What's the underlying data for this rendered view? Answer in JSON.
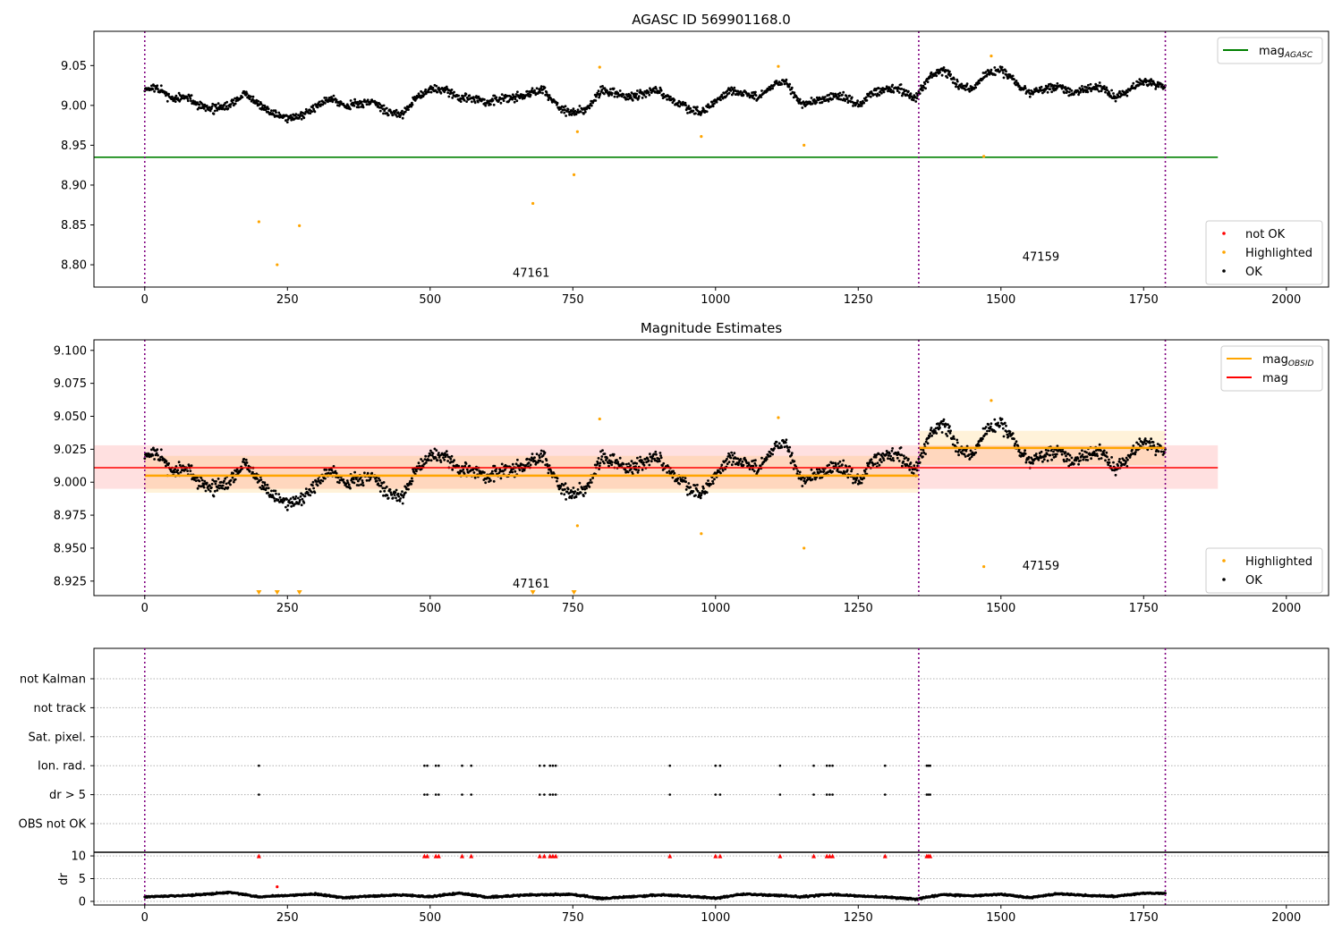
{
  "chart_data": [
    {
      "type": "scatter",
      "title": "AGASC ID 569901168.0",
      "xlim": [
        -89,
        2074
      ],
      "ylim": [
        8.772,
        9.093
      ],
      "xticks": [
        0,
        250,
        500,
        750,
        1000,
        1250,
        1500,
        1750,
        2000
      ],
      "yticks": [
        "8.80",
        "8.85",
        "8.90",
        "8.95",
        "9.00",
        "9.05"
      ],
      "mag_agasc": 8.935,
      "mag_agasc_xrange": [
        -89,
        1880
      ],
      "obsid_boundaries": [
        0,
        1356,
        1788
      ],
      "obsid_labels": [
        {
          "text": "47161",
          "x": 677,
          "y": 8.785
        },
        {
          "text": "47159",
          "x": 1570,
          "y": 8.805
        }
      ],
      "ok_curve": {
        "x_step": 25,
        "x_start": 0,
        "values": [
          9.022,
          9.02,
          9.008,
          9.01,
          8.998,
          8.996,
          9.0,
          9.015,
          9.0,
          8.99,
          8.985,
          8.985,
          9.0,
          9.01,
          9.0,
          9.002,
          9.005,
          8.992,
          8.988,
          9.01,
          9.02,
          9.02,
          9.01,
          9.008,
          9.005,
          9.008,
          9.01,
          9.015,
          9.02,
          8.998,
          8.99,
          8.995,
          9.02,
          9.015,
          9.01,
          9.015,
          9.02,
          9.005,
          8.998,
          8.99,
          9.005,
          9.02,
          9.015,
          9.01,
          9.025,
          9.03,
          9.0,
          9.005,
          9.01,
          9.01,
          9.0,
          9.015,
          9.02,
          9.02,
          9.01,
          9.035,
          9.045,
          9.025,
          9.02,
          9.04,
          9.045,
          9.03,
          9.015,
          9.02,
          9.025,
          9.015,
          9.02,
          9.025,
          9.01,
          9.02,
          9.03,
          9.025
        ]
      },
      "highlighted": [
        [
          200,
          8.854
        ],
        [
          232,
          8.8
        ],
        [
          271,
          8.849
        ],
        [
          680,
          8.877
        ],
        [
          752,
          8.913
        ],
        [
          758,
          8.967
        ],
        [
          797,
          9.048
        ],
        [
          975,
          8.961
        ],
        [
          1110,
          9.049
        ],
        [
          1155,
          8.95
        ],
        [
          1470,
          8.936
        ],
        [
          1483,
          9.062
        ]
      ],
      "legend_lines": [
        {
          "label": "mag",
          "sub": "AGASC",
          "color": "#008000"
        }
      ],
      "legend_points": [
        {
          "label": "not OK",
          "color": "#ff0000"
        },
        {
          "label": "Highlighted",
          "color": "#ffa500"
        },
        {
          "label": "OK",
          "color": "#000000"
        }
      ]
    },
    {
      "type": "scatter",
      "title": "Magnitude Estimates",
      "xlim": [
        -89,
        2074
      ],
      "ylim": [
        8.914,
        9.108
      ],
      "xticks": [
        0,
        250,
        500,
        750,
        1000,
        1250,
        1500,
        1750,
        2000
      ],
      "yticks": [
        "8.925",
        "8.950",
        "8.975",
        "9.000",
        "9.025",
        "9.050",
        "9.075",
        "9.100"
      ],
      "mag": {
        "value": 9.011,
        "band": [
          8.995,
          9.028
        ],
        "xrange": [
          -89,
          1880
        ]
      },
      "mag_obsid": [
        {
          "x": [
            0,
            1356
          ],
          "value": 9.005,
          "band": [
            8.992,
            9.02
          ]
        },
        {
          "x": [
            1356,
            1788
          ],
          "value": 9.026,
          "band": [
            9.013,
            9.039
          ]
        }
      ],
      "offscale_highlighted_x": [
        200,
        232,
        271,
        680,
        752
      ],
      "legend_lines": [
        {
          "label": "mag",
          "sub": "OBSID",
          "color": "#ffa500"
        },
        {
          "label": "mag",
          "sub": "",
          "color": "#ff0000"
        }
      ],
      "legend_points": [
        {
          "label": "Highlighted",
          "color": "#ffa500"
        },
        {
          "label": "OK",
          "color": "#000000"
        }
      ]
    },
    {
      "type": "scatter",
      "title": "",
      "categories": [
        "OBS not OK",
        "dr > 5",
        "Ion. rad.",
        "Sat. pixel.",
        "not track",
        "not Kalman"
      ],
      "flag_x": [
        200,
        490,
        495,
        510,
        515,
        556,
        572,
        692,
        700,
        710,
        715,
        720,
        920,
        1000,
        1008,
        1113,
        1172,
        1195,
        1200,
        1205,
        1297,
        1370,
        1373,
        1376
      ],
      "flagged_categories": [
        "dr > 5",
        "Ion. rad."
      ],
      "dr_ylabel": "dr",
      "dr_yticks": [
        "0",
        "5",
        "10"
      ],
      "dr_ylim": [
        -0.8,
        10.8
      ],
      "dr_clipped_value": 10,
      "dr_outlier": [
        232,
        3.2
      ],
      "dr_curve": {
        "x_step": 50,
        "x_start": 0,
        "values": [
          1.0,
          1.2,
          1.5,
          2.0,
          1.0,
          1.3,
          1.6,
          0.8,
          1.2,
          1.4,
          1.0,
          1.8,
          0.9,
          1.3,
          1.5,
          1.5,
          0.6,
          1.0,
          1.4,
          1.2,
          0.7,
          1.6,
          1.4,
          1.0,
          1.5,
          1.2,
          0.9,
          0.5,
          1.5,
          1.2,
          1.6,
          0.8,
          1.7,
          1.3,
          1.1,
          1.8
        ]
      }
    }
  ]
}
